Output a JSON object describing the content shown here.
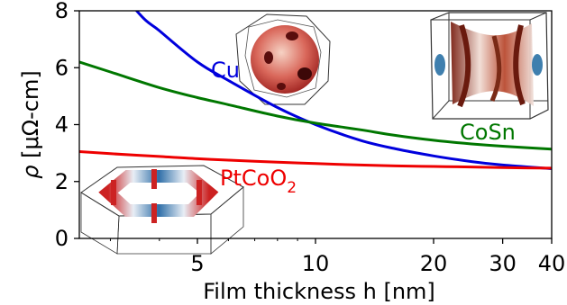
{
  "chart_data": {
    "type": "line",
    "xlabel": "Film thickness h [nm]",
    "ylabel_parts": {
      "symbol": "ρ",
      "unit": " [μΩ-cm]"
    },
    "x_scale": "log",
    "xlim": [
      2.5,
      40
    ],
    "ylim": [
      0,
      8
    ],
    "x_ticks": [
      5,
      10,
      20,
      30,
      40
    ],
    "x_tick_labels": [
      "5",
      "10",
      "20",
      "30",
      "40"
    ],
    "y_ticks": [
      0,
      2,
      4,
      6,
      8
    ],
    "y_tick_labels": [
      "0",
      "2",
      "4",
      "6",
      "8"
    ],
    "grid": false,
    "series": [
      {
        "name": "Cu",
        "color": "#0000dd",
        "x": [
          2.5,
          3.5,
          4,
          5,
          6,
          8,
          10,
          13,
          16,
          20,
          25,
          30,
          40
        ],
        "y": [
          10.5,
          8.0,
          7.3,
          6.2,
          5.55,
          4.6,
          4.0,
          3.45,
          3.15,
          2.9,
          2.7,
          2.58,
          2.45
        ]
      },
      {
        "name": "CoSn",
        "color": "#007700",
        "x": [
          2.5,
          3,
          4,
          5,
          6,
          8,
          10,
          13,
          16,
          20,
          25,
          30,
          40
        ],
        "y": [
          6.2,
          5.85,
          5.3,
          4.95,
          4.7,
          4.3,
          4.05,
          3.82,
          3.62,
          3.45,
          3.32,
          3.24,
          3.14
        ]
      },
      {
        "name": "PtCoO",
        "name_subscript": "2",
        "color": "#ee0000",
        "x": [
          2.5,
          3,
          4,
          5,
          6,
          8,
          10,
          13,
          16,
          20,
          25,
          30,
          40
        ],
        "y": [
          3.05,
          2.98,
          2.88,
          2.8,
          2.75,
          2.68,
          2.63,
          2.58,
          2.55,
          2.53,
          2.51,
          2.49,
          2.47
        ]
      }
    ],
    "insets": [
      {
        "icon": "cu-fermi-surface-icon",
        "colors": [
          "#c23a36",
          "#f3c8b8"
        ]
      },
      {
        "icon": "cosn-fermi-surface-icon",
        "colors": [
          "#8a2a1a",
          "#3f7fae"
        ]
      },
      {
        "icon": "ptcoo2-fermi-surface-icon",
        "colors": [
          "#cc2222",
          "#2f6fa8"
        ]
      }
    ]
  }
}
